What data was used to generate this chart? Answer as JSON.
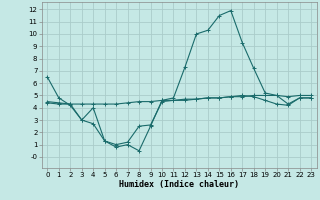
{
  "xlabel": "Humidex (Indice chaleur)",
  "background_color": "#c5e8e5",
  "grid_color": "#aaccca",
  "line_color": "#1a6b6b",
  "xlim": [
    -0.5,
    23.5
  ],
  "ylim": [
    -0.9,
    12.6
  ],
  "xticks": [
    0,
    1,
    2,
    3,
    4,
    5,
    6,
    7,
    8,
    9,
    10,
    11,
    12,
    13,
    14,
    15,
    16,
    17,
    18,
    19,
    20,
    21,
    22,
    23
  ],
  "yticks": [
    0,
    1,
    2,
    3,
    4,
    5,
    6,
    7,
    8,
    9,
    10,
    11,
    12
  ],
  "s1x": [
    0,
    1,
    2,
    3,
    4,
    5,
    6,
    7,
    8,
    9,
    10,
    11,
    12,
    13,
    14,
    15,
    16,
    17,
    18,
    19,
    20,
    21,
    22,
    23
  ],
  "s1y": [
    6.5,
    4.8,
    4.2,
    3.0,
    4.0,
    1.3,
    0.8,
    1.0,
    0.5,
    2.5,
    4.6,
    4.8,
    7.3,
    10.0,
    10.3,
    11.5,
    11.9,
    9.3,
    7.2,
    5.2,
    5.0,
    4.3,
    4.8,
    4.8
  ],
  "s2x": [
    0,
    1,
    2,
    3,
    4,
    5,
    6,
    7,
    8,
    9,
    10,
    11,
    12,
    13,
    14,
    15,
    16,
    17,
    18,
    19,
    20,
    21,
    22,
    23
  ],
  "s2y": [
    4.4,
    4.3,
    4.3,
    4.3,
    4.3,
    4.3,
    4.3,
    4.4,
    4.5,
    4.5,
    4.6,
    4.6,
    4.7,
    4.7,
    4.8,
    4.8,
    4.9,
    4.9,
    5.0,
    5.0,
    5.0,
    4.9,
    5.0,
    5.0
  ],
  "s3x": [
    0,
    1,
    2,
    3,
    4,
    5,
    6,
    7,
    8,
    9,
    10,
    11,
    12,
    13,
    14,
    15,
    16,
    17,
    18,
    19,
    20,
    21,
    22,
    23
  ],
  "s3y": [
    4.5,
    4.4,
    4.3,
    3.0,
    2.7,
    1.3,
    1.0,
    1.2,
    2.5,
    2.6,
    4.5,
    4.6,
    4.6,
    4.7,
    4.8,
    4.8,
    4.9,
    5.0,
    4.9,
    4.6,
    4.3,
    4.2,
    4.8,
    4.8
  ],
  "tick_fontsize": 5.0,
  "xlabel_fontsize": 6.0,
  "lw": 0.8,
  "ms": 2.2,
  "mew": 0.7
}
